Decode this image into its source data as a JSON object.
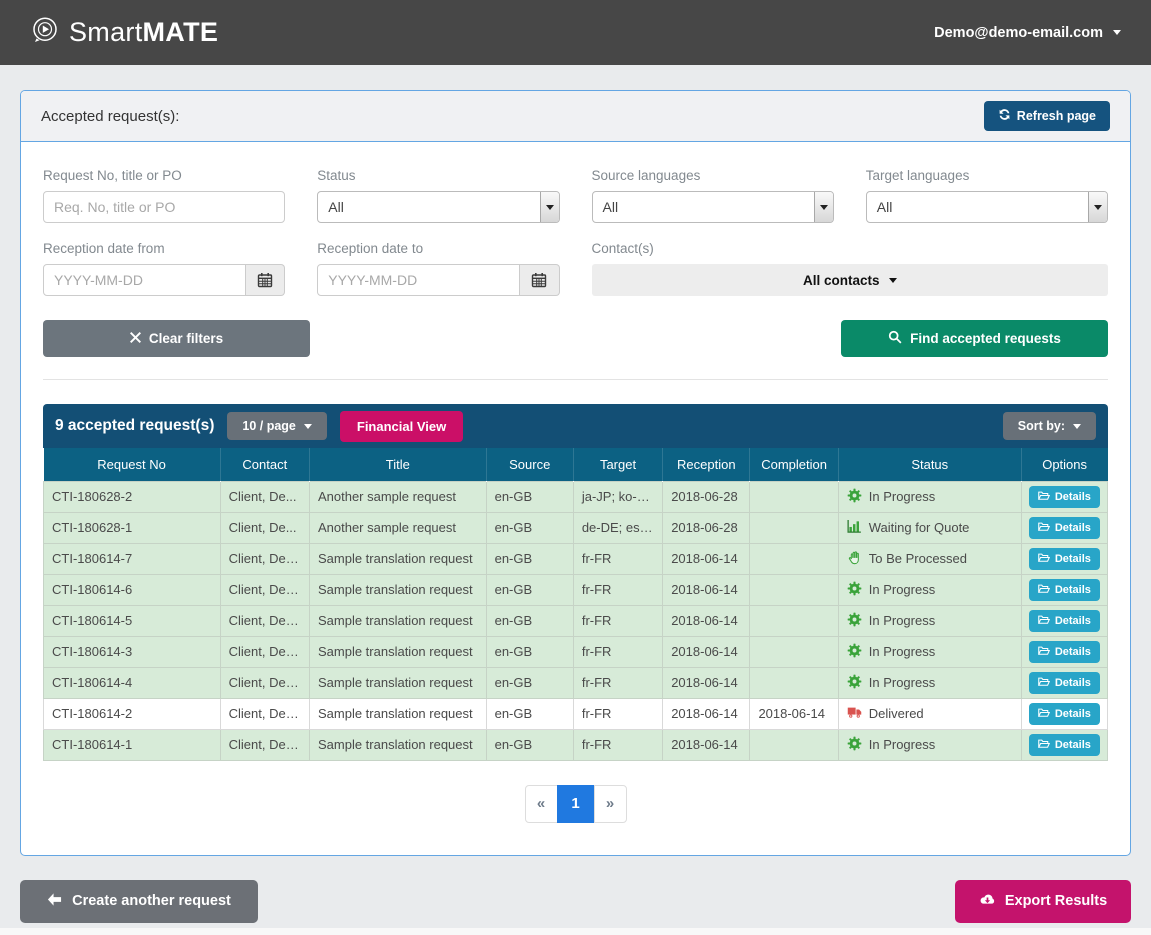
{
  "header": {
    "brand_smart": "Smart",
    "brand_mate": "MATE",
    "account": "Demo@demo-email.com"
  },
  "panel": {
    "title": "Accepted request(s):",
    "refresh_label": "Refresh page"
  },
  "filters": {
    "request": {
      "label": "Request No, title or PO",
      "placeholder": "Req. No, title or PO",
      "value": ""
    },
    "status": {
      "label": "Status",
      "value": "All"
    },
    "source": {
      "label": "Source languages",
      "value": "All"
    },
    "target": {
      "label": "Target languages",
      "value": "All"
    },
    "reception_from": {
      "label": "Reception date from",
      "placeholder": "YYYY-MM-DD",
      "value": ""
    },
    "reception_to": {
      "label": "Reception date to",
      "placeholder": "YYYY-MM-DD",
      "value": ""
    },
    "contacts": {
      "label": "Contact(s)",
      "value": "All contacts"
    },
    "clear_label": "Clear filters",
    "find_label": "Find accepted requests"
  },
  "results": {
    "count_label": "9 accepted request(s)",
    "per_page_label": "10 / page",
    "financial_view_label": "Financial View",
    "sort_by_label": "Sort by:",
    "details_label": "Details",
    "columns": [
      "Request No",
      "Contact",
      "Title",
      "Source",
      "Target",
      "Reception",
      "Completion",
      "Status",
      "Options"
    ],
    "rows": [
      {
        "request_no": "CTI-180628-2",
        "contact": "Client, De...",
        "title": "Another sample request",
        "source": "en-GB",
        "target": "ja-JP; ko-K...",
        "reception": "2018-06-28",
        "completion": "",
        "status": "In Progress",
        "status_icon": "gear",
        "highlighted": true
      },
      {
        "request_no": "CTI-180628-1",
        "contact": "Client, De...",
        "title": "Another sample request",
        "source": "en-GB",
        "target": "de-DE; es-...",
        "reception": "2018-06-28",
        "completion": "",
        "status": "Waiting for Quote",
        "status_icon": "bar-chart",
        "highlighted": true
      },
      {
        "request_no": "CTI-180614-7",
        "contact": "Client, Demo",
        "title": "Sample translation request",
        "source": "en-GB",
        "target": "fr-FR",
        "reception": "2018-06-14",
        "completion": "",
        "status": "To Be Processed",
        "status_icon": "hand",
        "highlighted": true
      },
      {
        "request_no": "CTI-180614-6",
        "contact": "Client, Demo",
        "title": "Sample translation request",
        "source": "en-GB",
        "target": "fr-FR",
        "reception": "2018-06-14",
        "completion": "",
        "status": "In Progress",
        "status_icon": "gear",
        "highlighted": true
      },
      {
        "request_no": "CTI-180614-5",
        "contact": "Client, Demo",
        "title": "Sample translation request",
        "source": "en-GB",
        "target": "fr-FR",
        "reception": "2018-06-14",
        "completion": "",
        "status": "In Progress",
        "status_icon": "gear",
        "highlighted": true
      },
      {
        "request_no": "CTI-180614-3",
        "contact": "Client, Demo",
        "title": "Sample translation request",
        "source": "en-GB",
        "target": "fr-FR",
        "reception": "2018-06-14",
        "completion": "",
        "status": "In Progress",
        "status_icon": "gear",
        "highlighted": true
      },
      {
        "request_no": "CTI-180614-4",
        "contact": "Client, Demo",
        "title": "Sample translation request",
        "source": "en-GB",
        "target": "fr-FR",
        "reception": "2018-06-14",
        "completion": "",
        "status": "In Progress",
        "status_icon": "gear",
        "highlighted": true
      },
      {
        "request_no": "CTI-180614-2",
        "contact": "Client, Demo",
        "title": "Sample translation request",
        "source": "en-GB",
        "target": "fr-FR",
        "reception": "2018-06-14",
        "completion": "2018-06-14",
        "status": "Delivered",
        "status_icon": "truck",
        "highlighted": false
      },
      {
        "request_no": "CTI-180614-1",
        "contact": "Client, Demo",
        "title": "Sample translation request",
        "source": "en-GB",
        "target": "fr-FR",
        "reception": "2018-06-14",
        "completion": "",
        "status": "In Progress",
        "status_icon": "gear",
        "highlighted": true
      }
    ]
  },
  "pagination": {
    "prev": "«",
    "current": "1",
    "next": "»"
  },
  "footer": {
    "create_label": "Create another request",
    "export_label": "Export Results"
  },
  "colors": {
    "appbar_bg": "#474747",
    "panel_border": "#64a6e3",
    "refresh_blue": "#15537f",
    "find_green": "#0a8a68",
    "clear_gray": "#6c757d",
    "toolbar_blue": "#134f75",
    "table_header_blue": "#0c6183",
    "financial_magenta": "#cb0f67",
    "export_magenta": "#c4136c",
    "row_green": "#d7ebd8",
    "details_cyan": "#28a5c8",
    "status_icon_green": "#3aa33a",
    "status_icon_red": "#d9534f",
    "page_active_blue": "#2079e0"
  }
}
